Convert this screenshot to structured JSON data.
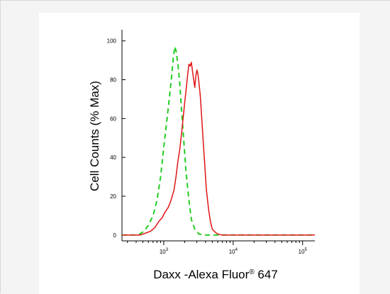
{
  "chart_data": {
    "type": "line",
    "title": "",
    "xlabel": "Daxx -Alexa Fluor",
    "xlabel_superscript": "®",
    "xlabel_suffix": " 647",
    "ylabel": "Cell Counts (% Max)",
    "x_scale": "log",
    "xlim": [
      250,
      150000
    ],
    "ylim": [
      -3,
      105
    ],
    "y_ticks": [
      0,
      20,
      40,
      60,
      80,
      100
    ],
    "y_tick_labels": [
      "0",
      "20",
      "40",
      "60",
      "80",
      "100"
    ],
    "x_ticks": [
      1000,
      10000,
      100000
    ],
    "x_tick_labels": [
      {
        "base": "10",
        "exp": "3"
      },
      {
        "base": "10",
        "exp": "4"
      },
      {
        "base": "10",
        "exp": "5"
      }
    ],
    "grid": false,
    "legend": "none",
    "series": [
      {
        "color": "#22cc22",
        "style": "dashed",
        "x": [
          250,
          380,
          450,
          520,
          600,
          700,
          800,
          900,
          1000,
          1100,
          1200,
          1300,
          1380,
          1440,
          1500,
          1600,
          1700,
          1800,
          1950,
          2100,
          2300,
          2500,
          2800,
          3200,
          4000,
          10000,
          150000
        ],
        "y": [
          0,
          0,
          0.5,
          2,
          5,
          10,
          18,
          30,
          45,
          58,
          70,
          82,
          92,
          97,
          95,
          88,
          78,
          65,
          48,
          32,
          18,
          8,
          3,
          0.5,
          0,
          0,
          0
        ]
      },
      {
        "color": "#e01515",
        "style": "solid",
        "x": [
          250,
          450,
          550,
          650,
          750,
          850,
          950,
          1050,
          1150,
          1250,
          1400,
          1500,
          1600,
          1700,
          1800,
          1900,
          2000,
          2100,
          2200,
          2300,
          2400,
          2500,
          2600,
          2700,
          2800,
          2900,
          3000,
          3100,
          3200,
          3350,
          3500,
          3700,
          3900,
          4100,
          4400,
          4700,
          5000,
          5500,
          6000,
          7000,
          8000,
          10000,
          150000
        ],
        "y": [
          0,
          0,
          1,
          2,
          4,
          7,
          9,
          12,
          14,
          17,
          23,
          30,
          38,
          44,
          52,
          60,
          68,
          75,
          82,
          88,
          87,
          89,
          84,
          80,
          76,
          82,
          85,
          83,
          79,
          72,
          62,
          48,
          36,
          24,
          14,
          7,
          3,
          1.5,
          0.5,
          0,
          0,
          0,
          0
        ]
      }
    ]
  }
}
